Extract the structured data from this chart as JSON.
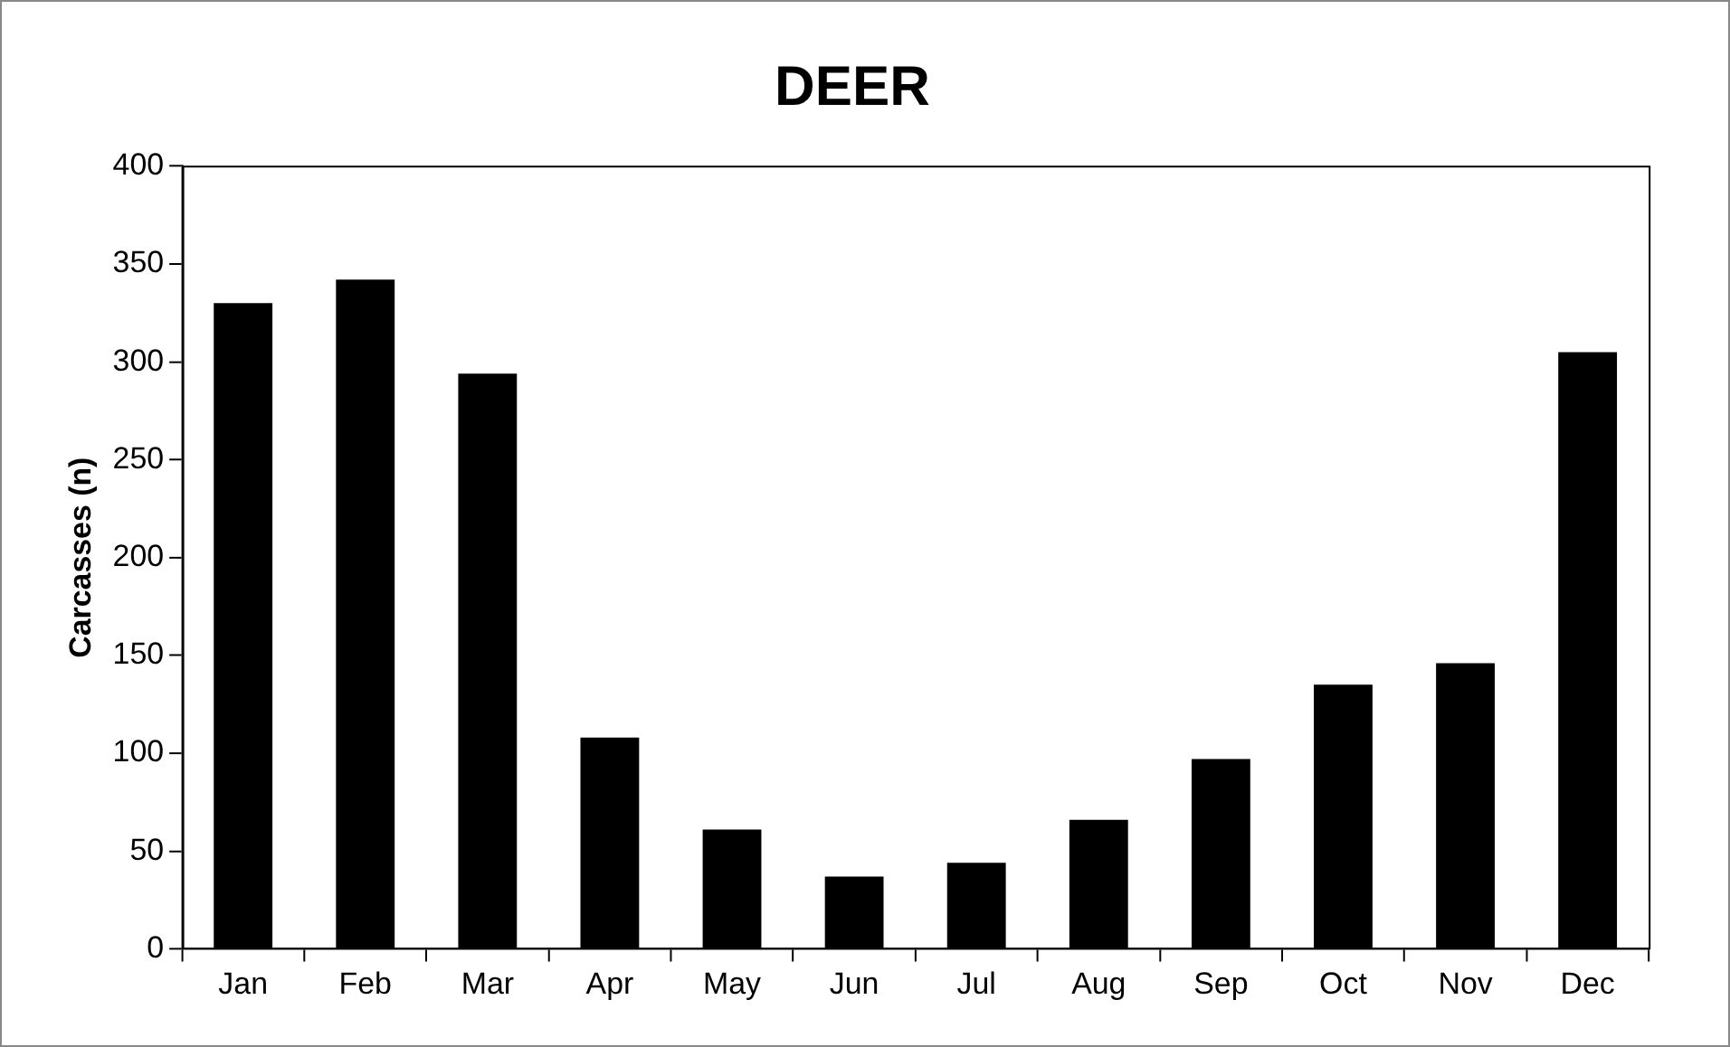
{
  "chart_data": {
    "type": "bar",
    "title": "DEER",
    "ylabel": "Carcasses (n)",
    "categories": [
      "Jan",
      "Feb",
      "Mar",
      "Apr",
      "May",
      "Jun",
      "Jul",
      "Aug",
      "Sep",
      "Oct",
      "Nov",
      "Dec"
    ],
    "values": [
      330,
      342,
      294,
      108,
      61,
      37,
      44,
      66,
      97,
      135,
      146,
      305
    ],
    "color": "#000000",
    "ylim": [
      0,
      400
    ],
    "yticks": [
      0,
      50,
      100,
      150,
      200,
      250,
      300,
      350,
      400
    ],
    "grid": false,
    "legend": false
  }
}
